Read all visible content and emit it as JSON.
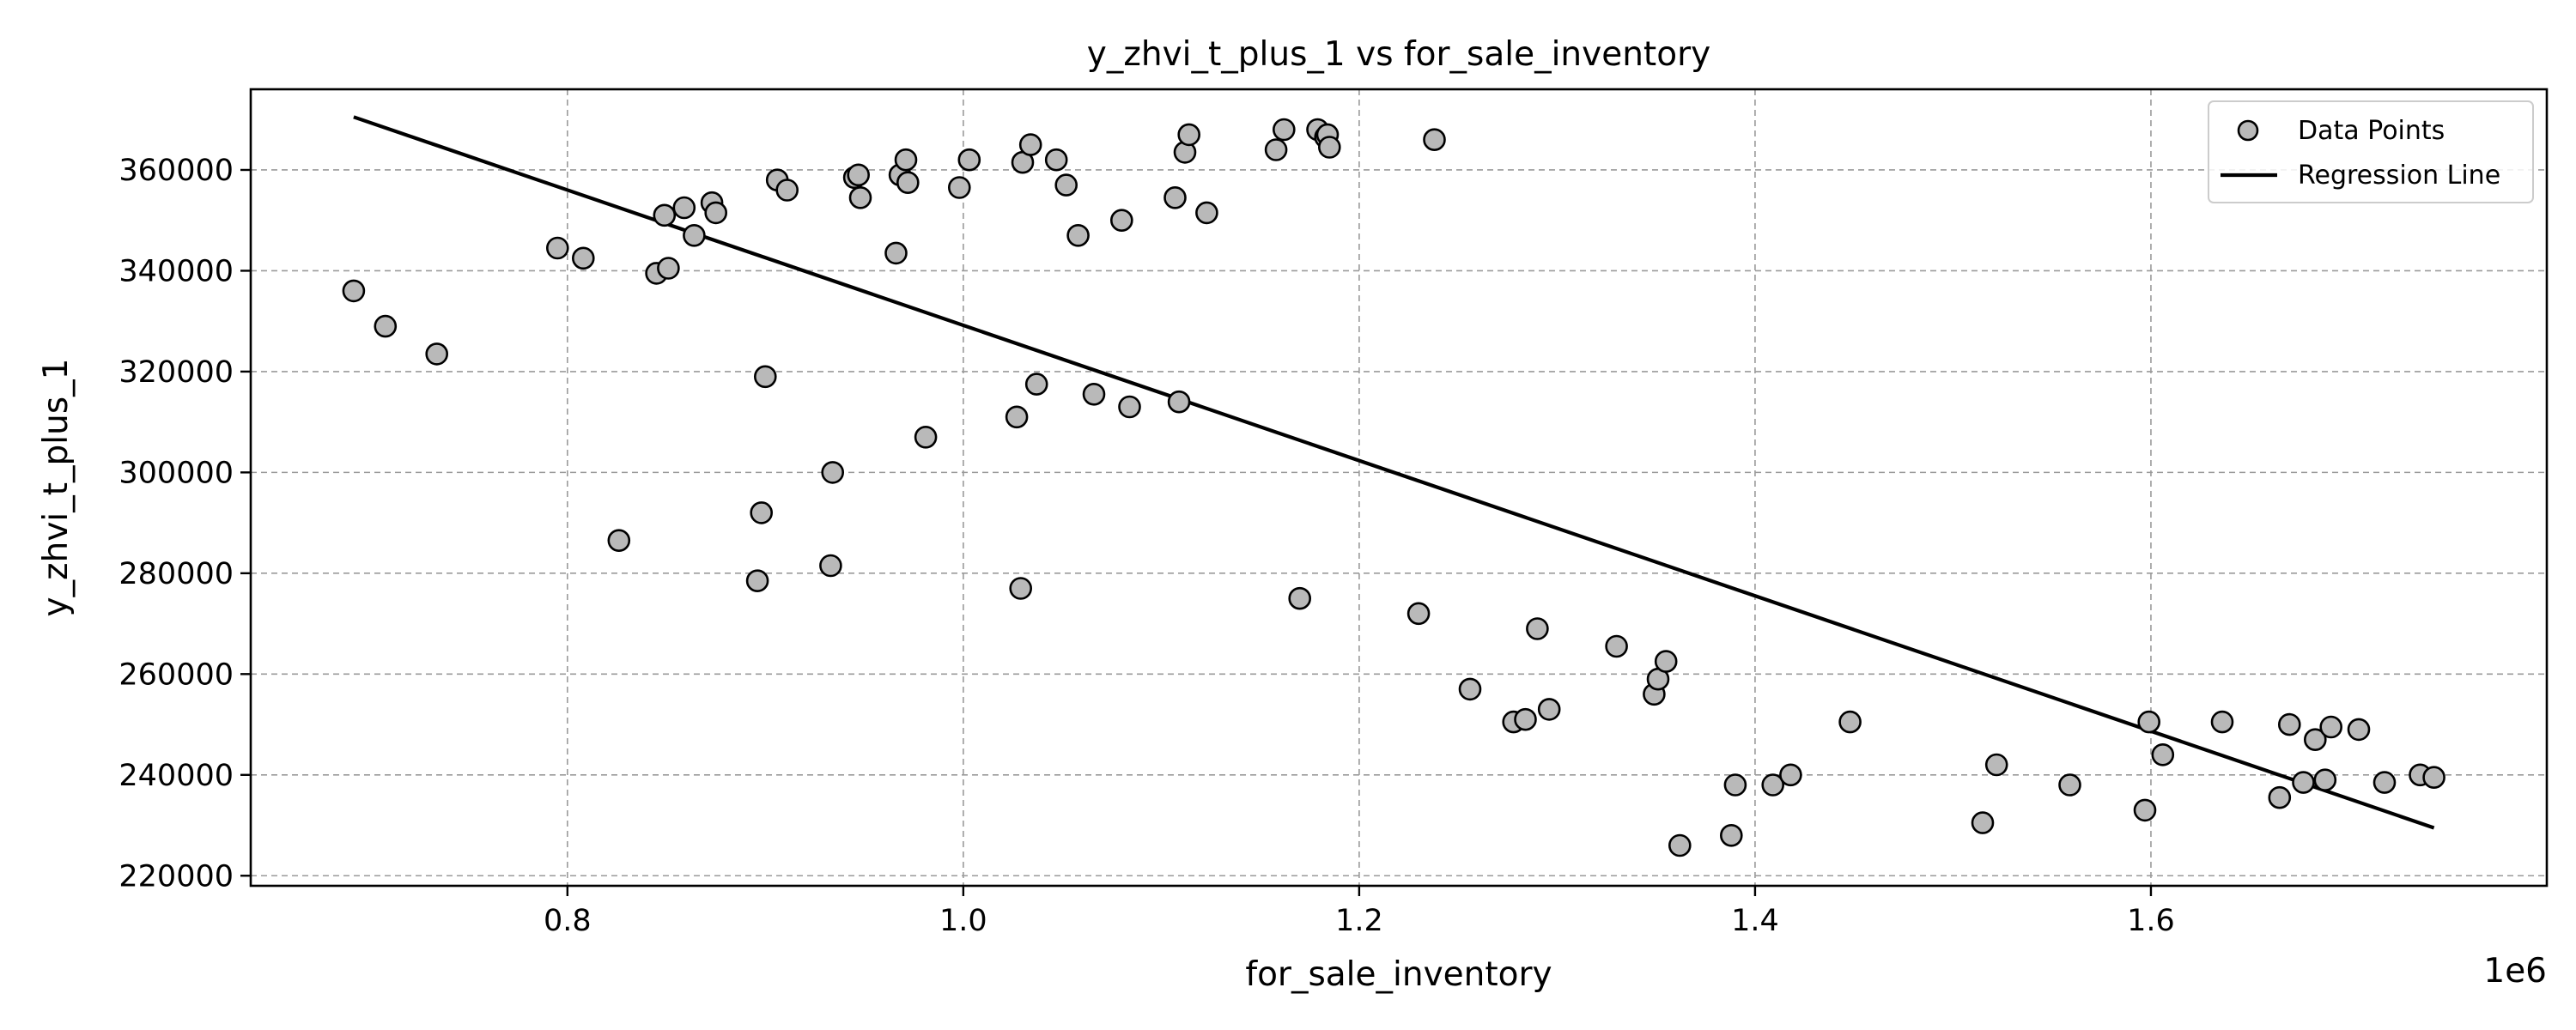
{
  "chart_data": {
    "type": "scatter",
    "title": "y_zhvi_t_plus_1 vs for_sale_inventory",
    "xlabel": "for_sale_inventory",
    "ylabel": "y_zhvi_t_plus_1",
    "x_offset_label": "1e6",
    "xlim": [
      640000,
      1800000
    ],
    "ylim": [
      218000,
      376000
    ],
    "x_ticks": [
      800000,
      1000000,
      1200000,
      1400000,
      1600000
    ],
    "x_tick_labels": [
      "0.8",
      "1.0",
      "1.2",
      "1.4",
      "1.6"
    ],
    "y_ticks": [
      220000,
      240000,
      260000,
      280000,
      300000,
      320000,
      340000,
      360000
    ],
    "y_tick_labels": [
      "220000",
      "240000",
      "260000",
      "280000",
      "300000",
      "320000",
      "340000",
      "360000"
    ],
    "grid": true,
    "legend_position": "top-right",
    "legend": [
      "Data Points",
      "Regression Line"
    ],
    "series": [
      {
        "name": "Data Points",
        "kind": "scatter",
        "color": "#b9b9b9",
        "edge_color": "#000000",
        "points": [
          [
            692000,
            336000
          ],
          [
            708000,
            329000
          ],
          [
            734000,
            323500
          ],
          [
            795000,
            344500
          ],
          [
            808000,
            342500
          ],
          [
            826000,
            286500
          ],
          [
            845000,
            339500
          ],
          [
            849000,
            351000
          ],
          [
            851000,
            340500
          ],
          [
            859000,
            352500
          ],
          [
            864000,
            347000
          ],
          [
            873000,
            353500
          ],
          [
            875000,
            351500
          ],
          [
            896000,
            278500
          ],
          [
            898000,
            292000
          ],
          [
            900000,
            319000
          ],
          [
            906000,
            358000
          ],
          [
            911000,
            356000
          ],
          [
            933000,
            281500
          ],
          [
            934000,
            300000
          ],
          [
            945000,
            358500
          ],
          [
            947000,
            359000
          ],
          [
            948000,
            354500
          ],
          [
            966000,
            343500
          ],
          [
            968000,
            359000
          ],
          [
            971000,
            362000
          ],
          [
            972000,
            357500
          ],
          [
            981000,
            307000
          ],
          [
            998000,
            356500
          ],
          [
            1003000,
            362000
          ],
          [
            1027000,
            311000
          ],
          [
            1029000,
            277000
          ],
          [
            1030000,
            361500
          ],
          [
            1034000,
            365000
          ],
          [
            1037000,
            317500
          ],
          [
            1047000,
            362000
          ],
          [
            1052000,
            357000
          ],
          [
            1058000,
            347000
          ],
          [
            1066000,
            315500
          ],
          [
            1080000,
            350000
          ],
          [
            1084000,
            313000
          ],
          [
            1107000,
            354500
          ],
          [
            1109000,
            314000
          ],
          [
            1112000,
            363500
          ],
          [
            1114000,
            367000
          ],
          [
            1123000,
            351500
          ],
          [
            1158000,
            364000
          ],
          [
            1162000,
            368000
          ],
          [
            1170000,
            275000
          ],
          [
            1179000,
            368000
          ],
          [
            1183000,
            366500
          ],
          [
            1184000,
            367000
          ],
          [
            1185000,
            364500
          ],
          [
            1230000,
            272000
          ],
          [
            1238000,
            366000
          ],
          [
            1256000,
            257000
          ],
          [
            1278000,
            250500
          ],
          [
            1284000,
            251000
          ],
          [
            1290000,
            269000
          ],
          [
            1296000,
            253000
          ],
          [
            1330000,
            265500
          ],
          [
            1349000,
            256000
          ],
          [
            1351000,
            259000
          ],
          [
            1355000,
            262500
          ],
          [
            1362000,
            226000
          ],
          [
            1388000,
            228000
          ],
          [
            1390000,
            238000
          ],
          [
            1409000,
            238000
          ],
          [
            1418000,
            240000
          ],
          [
            1448000,
            250500
          ],
          [
            1515000,
            230500
          ],
          [
            1522000,
            242000
          ],
          [
            1559000,
            238000
          ],
          [
            1597000,
            233000
          ],
          [
            1599000,
            250500
          ],
          [
            1606000,
            244000
          ],
          [
            1636000,
            250500
          ],
          [
            1665000,
            235500
          ],
          [
            1670000,
            250000
          ],
          [
            1677000,
            238500
          ],
          [
            1683000,
            247000
          ],
          [
            1688000,
            239000
          ],
          [
            1691000,
            249500
          ],
          [
            1705000,
            249000
          ],
          [
            1718000,
            238500
          ],
          [
            1736000,
            240000
          ],
          [
            1743000,
            239500
          ]
        ]
      },
      {
        "name": "Regression Line",
        "kind": "line",
        "color": "#000000",
        "points": [
          [
            692000,
            370500
          ],
          [
            1743000,
            229500
          ]
        ]
      }
    ]
  }
}
